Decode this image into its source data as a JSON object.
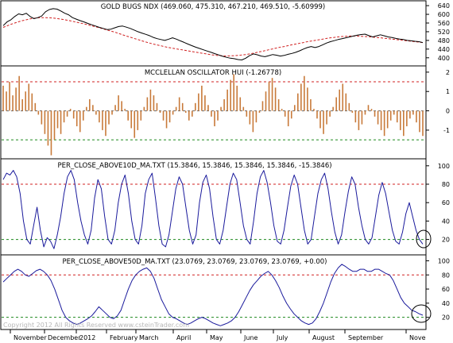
{
  "colors": {
    "price": "#000000",
    "moving_average": "#d02020",
    "oscillator": "#c87a3a",
    "breadth_line": "#1a1a9c",
    "upper_ref": "#d02020",
    "lower_ref": "#1f8a1f",
    "zero_ref": "#666666",
    "highlight_circle": "#000000"
  },
  "copyright": "Copyright 2012 All Rights Reserved www.csteinTrader.com",
  "months": [
    "November",
    "December",
    "2012",
    "February",
    "March",
    "April",
    "May",
    "June",
    "July",
    "August",
    "September",
    "Nove"
  ],
  "chart_data": [
    {
      "type": "line",
      "title": "GOLD BUGS NDX (469.060, 475.310, 467.210, 469.510, -5.60999)",
      "y_ticks": [
        "640",
        "600",
        "560",
        "520",
        "480",
        "440",
        "400"
      ],
      "ylim": [
        370,
        655
      ],
      "series": [
        {
          "values": [
            548,
            565,
            575,
            590,
            602,
            598,
            605,
            590,
            580,
            585,
            592,
            612,
            622,
            626,
            624,
            615,
            605,
            598,
            585,
            578,
            571,
            565,
            558,
            552,
            546,
            540,
            535,
            530,
            532,
            538,
            544,
            546,
            541,
            535,
            528,
            520,
            514,
            508,
            502,
            494,
            488,
            484,
            480,
            486,
            492,
            486,
            478,
            471,
            463,
            456,
            449,
            443,
            437,
            431,
            425,
            419,
            413,
            407,
            402,
            398,
            396,
            392,
            390,
            398,
            410,
            418,
            414,
            408,
            405,
            410,
            415,
            412,
            408,
            411,
            416,
            420,
            425,
            432,
            440,
            447,
            452,
            447,
            452,
            460,
            468,
            474,
            479,
            484,
            488,
            492,
            496,
            500,
            504,
            507,
            509,
            502,
            496,
            501,
            506,
            501,
            496,
            493,
            489,
            486,
            484,
            480,
            478,
            476,
            474,
            470
          ]
        },
        {
          "values": [
            540,
            547,
            554,
            560,
            566,
            571,
            575,
            579,
            582,
            584,
            585,
            585,
            584,
            583,
            581,
            578,
            575,
            572,
            568,
            564,
            560,
            556,
            552,
            547,
            543,
            538,
            533,
            528,
            523,
            518,
            512,
            506,
            500,
            495,
            489,
            484,
            478,
            473,
            468,
            463,
            459,
            455,
            451,
            447,
            444,
            441,
            438,
            435,
            432,
            429,
            426,
            423,
            420,
            417,
            414,
            412,
            410,
            409,
            408,
            409,
            410,
            411,
            413,
            415,
            418,
            421,
            425,
            429,
            433,
            437,
            441,
            445,
            449,
            452,
            456,
            460,
            463,
            467,
            470,
            474,
            477,
            480,
            483,
            486,
            489,
            492,
            494,
            496,
            498,
            499,
            500,
            500,
            500,
            499,
            498,
            497,
            495,
            493,
            492,
            490,
            488,
            486,
            484,
            482,
            480,
            478,
            476,
            474,
            472,
            470
          ]
        }
      ]
    },
    {
      "type": "bar",
      "title": "MCCLELLAN OSCILLATOR HUI (-1.26778)",
      "y_ticks": [
        "2",
        "1",
        "0",
        "-1"
      ],
      "ylim": [
        -2.4,
        2.2
      ],
      "reference_lines": [
        1.5,
        0,
        -1.5
      ],
      "values": [
        1.3,
        1.0,
        1.5,
        0.8,
        1.2,
        1.8,
        0.6,
        1.0,
        1.4,
        0.9,
        0.4,
        -0.2,
        -0.7,
        -1.2,
        -1.8,
        -2.3,
        -1.5,
        -0.9,
        -1.2,
        -0.6,
        -0.3,
        0.1,
        -0.4,
        -0.8,
        -1.1,
        -0.5,
        0.2,
        0.6,
        0.3,
        -0.2,
        -0.6,
        -1.0,
        -1.3,
        -0.7,
        -0.2,
        0.3,
        0.8,
        0.5,
        0.1,
        -0.5,
        -0.9,
        -1.4,
        -1.0,
        -0.5,
        0.2,
        0.7,
        1.1,
        0.8,
        0.4,
        -0.1,
        -0.5,
        -0.9,
        -0.6,
        -0.2,
        0.2,
        0.7,
        0.4,
        -0.1,
        -0.5,
        -0.3,
        0.4,
        0.9,
        1.3,
        0.8,
        0.3,
        -0.3,
        -0.8,
        -0.5,
        0.2,
        0.6,
        1.1,
        1.6,
        1.9,
        1.3,
        0.7,
        0.2,
        -0.3,
        -0.7,
        -1.1,
        -0.6,
        -0.1,
        0.5,
        1.0,
        1.5,
        1.7,
        1.2,
        0.6,
        0.1,
        -0.3,
        -0.8,
        -0.4,
        0.3,
        0.9,
        1.4,
        1.8,
        1.2,
        0.6,
        0.1,
        -0.4,
        -0.9,
        -1.2,
        -0.7,
        -0.3,
        0.2,
        0.7,
        1.1,
        1.4,
        0.9,
        0.4,
        -0.1,
        -0.6,
        -1.0,
        -0.7,
        -0.2,
        0.3,
        0.1,
        -0.3,
        -0.7,
        -1.0,
        -1.3,
        -0.9,
        -0.5,
        -0.2,
        -0.6,
        -1.0,
        -1.3,
        -0.8,
        -0.4,
        -0.2,
        -0.6,
        -1.1,
        -1.3
      ]
    },
    {
      "type": "line",
      "title": "PER_CLOSE_ABOVE10D_MA.TXT (15.3846, 15.3846, 15.3846, 15.3846, -15.3846)",
      "y_ticks": [
        "100",
        "80",
        "60",
        "40",
        "20"
      ],
      "ylim": [
        5,
        105
      ],
      "reference_lines": [
        80,
        20
      ],
      "series": [
        {
          "values": [
            85,
            92,
            90,
            95,
            88,
            70,
            40,
            20,
            15,
            35,
            55,
            30,
            12,
            22,
            18,
            10,
            25,
            45,
            70,
            88,
            95,
            85,
            60,
            40,
            25,
            15,
            30,
            65,
            85,
            75,
            45,
            20,
            15,
            30,
            60,
            80,
            90,
            70,
            40,
            20,
            15,
            35,
            70,
            85,
            92,
            65,
            35,
            15,
            12,
            25,
            50,
            75,
            88,
            80,
            55,
            30,
            15,
            25,
            60,
            82,
            90,
            75,
            45,
            20,
            15,
            30,
            55,
            80,
            92,
            85,
            60,
            35,
            20,
            15,
            40,
            70,
            88,
            95,
            82,
            60,
            35,
            18,
            15,
            30,
            55,
            78,
            90,
            80,
            55,
            30,
            15,
            20,
            45,
            70,
            85,
            92,
            75,
            50,
            28,
            15,
            25,
            50,
            72,
            88,
            80,
            55,
            35,
            20,
            15,
            22,
            45,
            68,
            82,
            70,
            50,
            30,
            18,
            15,
            28,
            48,
            60,
            45,
            30,
            20,
            15
          ]
        }
      ]
    },
    {
      "type": "line",
      "title": "PER_CLOSE_ABOVE50D_MA.TXT (23.0769, 23.0769, 23.0769, 23.0769, +0.00)",
      "y_ticks": [
        "100",
        "80",
        "60",
        "40",
        "20"
      ],
      "ylim": [
        5,
        105
      ],
      "reference_lines": [
        80,
        20
      ],
      "series": [
        {
          "values": [
            70,
            75,
            80,
            85,
            88,
            85,
            80,
            78,
            82,
            86,
            88,
            85,
            80,
            72,
            60,
            45,
            30,
            20,
            15,
            12,
            10,
            12,
            15,
            18,
            22,
            28,
            35,
            30,
            25,
            20,
            18,
            22,
            30,
            45,
            60,
            72,
            80,
            85,
            88,
            90,
            85,
            75,
            60,
            45,
            35,
            25,
            20,
            18,
            15,
            12,
            10,
            12,
            15,
            18,
            20,
            18,
            15,
            12,
            10,
            8,
            10,
            12,
            15,
            20,
            28,
            38,
            48,
            58,
            66,
            72,
            78,
            82,
            85,
            80,
            72,
            62,
            50,
            40,
            32,
            25,
            20,
            15,
            12,
            10,
            12,
            18,
            28,
            40,
            55,
            70,
            82,
            90,
            95,
            92,
            88,
            85,
            85,
            88,
            88,
            85,
            85,
            88,
            88,
            85,
            82,
            80,
            72,
            60,
            48,
            40,
            35,
            30,
            28,
            25,
            23
          ]
        }
      ]
    }
  ]
}
